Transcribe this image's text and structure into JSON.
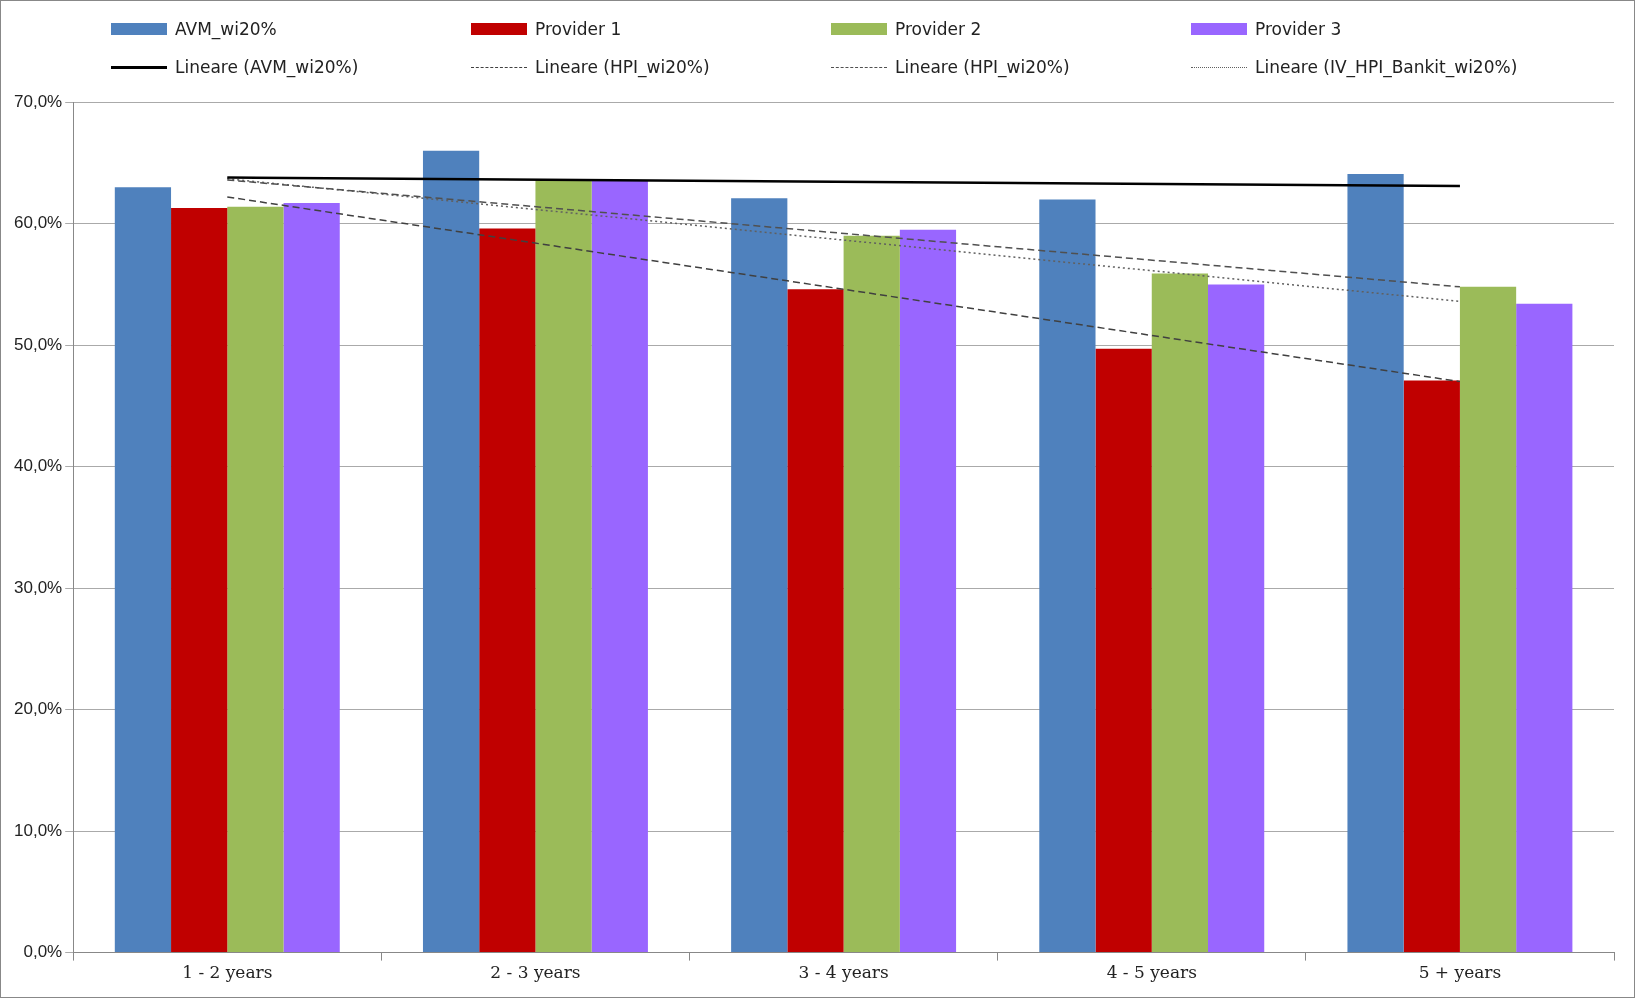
{
  "chart_data": {
    "type": "bar",
    "categories": [
      "1 - 2 years",
      "2 - 3 years",
      "3 - 4 years",
      "4 - 5 years",
      "5 + years"
    ],
    "series": [
      {
        "name": "AVM_wi20%",
        "color": "#4f81bd",
        "values": [
          63.0,
          66.0,
          62.1,
          62.0,
          64.1
        ]
      },
      {
        "name": "Provider 1",
        "color": "#c00000",
        "values": [
          61.3,
          59.6,
          54.6,
          49.7,
          47.1
        ]
      },
      {
        "name": "Provider 2",
        "color": "#9bbb59",
        "values": [
          61.4,
          63.6,
          59.0,
          55.9,
          54.8
        ]
      },
      {
        "name": "Provider 3",
        "color": "#9966ff",
        "values": [
          61.7,
          63.6,
          59.5,
          55.0,
          53.4
        ]
      },
      {
        "name": "Lineare (AVM_wi20%)",
        "type": "line",
        "color": "#000000",
        "line_style": "solid",
        "x": [
          "1 - 2 years",
          "5 + years"
        ],
        "values": [
          63.8,
          63.1
        ]
      },
      {
        "name": "Lineare (HPI_wi20%)",
        "type": "line",
        "color": "#404040",
        "line_style": "dashed",
        "x": [
          "1 - 2 years",
          "5 + years"
        ],
        "values": [
          62.2,
          47.0
        ]
      },
      {
        "name": "Lineare (HPI_wi20%)",
        "type": "line",
        "color": "#505050",
        "line_style": "dashed",
        "x": [
          "1 - 2 years",
          "5 + years"
        ],
        "values": [
          63.6,
          54.8
        ]
      },
      {
        "name": "Lineare (IV_HPI_Bankit_wi20%)",
        "type": "line",
        "color": "#606060",
        "line_style": "dotted",
        "x": [
          "1 - 2 years",
          "5 + years"
        ],
        "values": [
          63.7,
          53.6
        ]
      }
    ],
    "ylim": [
      0,
      70
    ],
    "yticks": [
      {
        "value": 0,
        "label": "0,0%"
      },
      {
        "value": 10,
        "label": "10,0%"
      },
      {
        "value": 20,
        "label": "20,0%"
      },
      {
        "value": 30,
        "label": "30,0%"
      },
      {
        "value": 40,
        "label": "40,0%"
      },
      {
        "value": 50,
        "label": "50,0%"
      },
      {
        "value": 60,
        "label": "60,0%"
      },
      {
        "value": 70,
        "label": "70,0%"
      }
    ],
    "grid": "y",
    "legend": "top"
  }
}
